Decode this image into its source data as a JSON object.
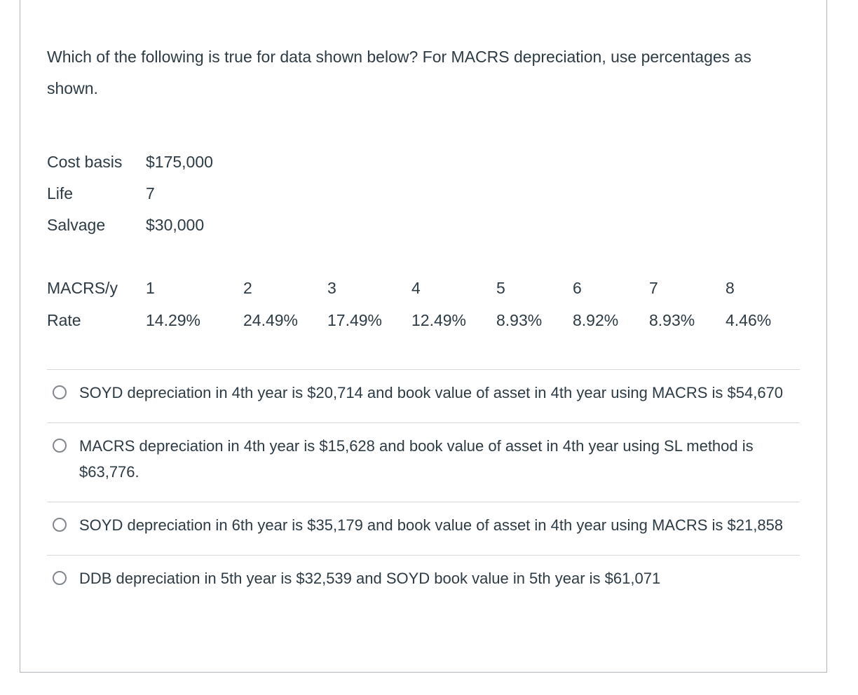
{
  "question": {
    "text": "Which of the following is true for data shown below? For MACRS depreciation, use percentages as shown."
  },
  "given_data": {
    "rows": [
      {
        "label": "Cost basis",
        "value": "$175,000"
      },
      {
        "label": "Life",
        "value": "7"
      },
      {
        "label": "Salvage",
        "value": "$30,000"
      }
    ]
  },
  "macrs_table": {
    "row1_label": "MACRS/y",
    "years": [
      "1",
      "2",
      "3",
      "4",
      "5",
      "6",
      "7",
      "8"
    ],
    "row2_label": "Rate",
    "rates": [
      "14.29%",
      "24.49%",
      "17.49%",
      "12.49%",
      "8.93%",
      "8.92%",
      "8.93%",
      "4.46%"
    ]
  },
  "options": [
    {
      "text": "SOYD depreciation in 4th year is $20,714 and book value of asset in 4th year using MACRS is $54,670",
      "selected": false
    },
    {
      "text": "MACRS depreciation in 4th year is $15,628 and book value of asset in 4th year using SL method is $63,776.",
      "selected": false
    },
    {
      "text": "SOYD depreciation in 6th year is $35,179 and book value of asset in 4th year using MACRS is $21,858",
      "selected": false
    },
    {
      "text": "DDB depreciation in 5th year is $32,539 and SOYD book value in 5th year is $61,071",
      "selected": false
    }
  ],
  "colors": {
    "text": "#2d3b45",
    "card_border": "#b0b5ba",
    "option_divider": "#d5d8da",
    "radio_border": "#81878c",
    "background": "#ffffff"
  }
}
